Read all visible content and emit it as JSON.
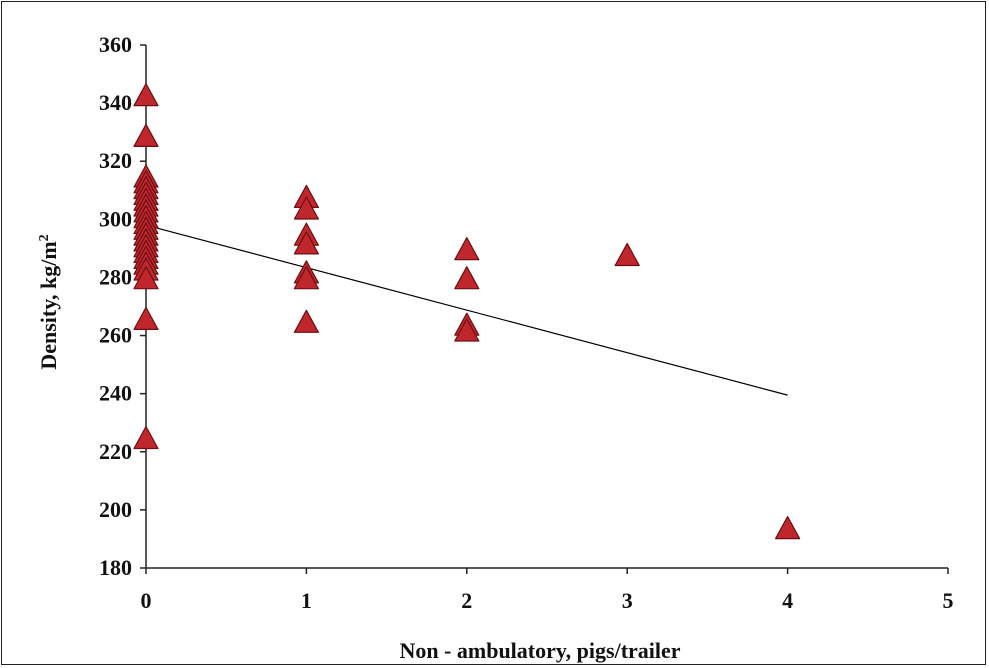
{
  "chart_data": {
    "type": "scatter",
    "title": "",
    "xlabel": "Non - ambulatory, pigs/trailer",
    "ylabel_main": "Density, kg/m",
    "ylabel_sup": "2",
    "xlim": [
      0,
      5
    ],
    "ylim": [
      180,
      360
    ],
    "xticks": [
      "0",
      "1",
      "2",
      "3",
      "4",
      "5"
    ],
    "yticks": [
      "180",
      "200",
      "220",
      "240",
      "260",
      "280",
      "300",
      "320",
      "340",
      "360"
    ],
    "grid": false,
    "legend": "none",
    "marker": "triangle",
    "marker_color": "#c0272d",
    "marker_edge": "#6b0f12",
    "points": [
      {
        "x": 0,
        "y": 342
      },
      {
        "x": 0,
        "y": 328
      },
      {
        "x": 0,
        "y": 314
      },
      {
        "x": 0,
        "y": 312
      },
      {
        "x": 0,
        "y": 310
      },
      {
        "x": 0,
        "y": 308
      },
      {
        "x": 0,
        "y": 306
      },
      {
        "x": 0,
        "y": 304
      },
      {
        "x": 0,
        "y": 302
      },
      {
        "x": 0,
        "y": 300
      },
      {
        "x": 0,
        "y": 298
      },
      {
        "x": 0,
        "y": 296
      },
      {
        "x": 0,
        "y": 294
      },
      {
        "x": 0,
        "y": 292
      },
      {
        "x": 0,
        "y": 290
      },
      {
        "x": 0,
        "y": 288
      },
      {
        "x": 0,
        "y": 286
      },
      {
        "x": 0,
        "y": 284
      },
      {
        "x": 0,
        "y": 282
      },
      {
        "x": 0,
        "y": 279
      },
      {
        "x": 0,
        "y": 265
      },
      {
        "x": 0,
        "y": 224
      },
      {
        "x": 1,
        "y": 307
      },
      {
        "x": 1,
        "y": 303
      },
      {
        "x": 1,
        "y": 294
      },
      {
        "x": 1,
        "y": 291
      },
      {
        "x": 1,
        "y": 281
      },
      {
        "x": 1,
        "y": 279
      },
      {
        "x": 1,
        "y": 264
      },
      {
        "x": 2,
        "y": 289
      },
      {
        "x": 2,
        "y": 279
      },
      {
        "x": 2,
        "y": 263
      },
      {
        "x": 2,
        "y": 261
      },
      {
        "x": 3,
        "y": 287
      },
      {
        "x": 4,
        "y": 193
      }
    ],
    "trendline": {
      "x": [
        0,
        4
      ],
      "y": [
        298,
        239.5
      ],
      "color": "#000000"
    }
  }
}
